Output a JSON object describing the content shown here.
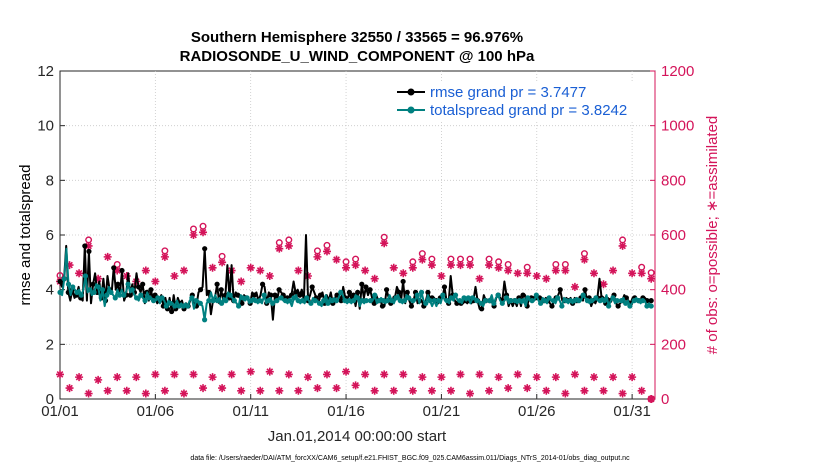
{
  "chart_data": {
    "type": "line",
    "title_line1": "Southern Hemisphere 32550 / 33565 = 96.976%",
    "title_line2": "RADIOSONDE_U_WIND_COMPONENT @ 100 hPa",
    "xlabel": "Jan.01,2014 00:00:00 start",
    "ylabel_left": "rmse and totalspread",
    "ylabel_right": "# of obs: o=possible; ∗=assimilated",
    "footnote": "data file: /Users/raeder/DAI/ATM_forcXX/CAM6_setup/f.e21.FHIST_BGC.f09_025.CAM6assim.011/Diags_NTrS_2014-01/obs_diag_output.nc",
    "xlim": [
      1,
      32.2
    ],
    "x_ticks": [
      1,
      6,
      11,
      16,
      21,
      26,
      31
    ],
    "x_tick_labels": [
      "01/01",
      "01/06",
      "01/11",
      "01/16",
      "01/21",
      "01/26",
      "01/31"
    ],
    "ylim_left": [
      0,
      12
    ],
    "y_ticks_left": [
      "0",
      "2",
      "4",
      "6",
      "8",
      "10",
      "12"
    ],
    "ylim_right": [
      0,
      1200
    ],
    "y_ticks_right": [
      "0",
      "200",
      "400",
      "600",
      "800",
      "1000",
      "1200"
    ],
    "colors": {
      "rmse": "#000000",
      "totalspread": "#008080",
      "obs": "#d4145a",
      "legend_text": "#1a5fd4"
    },
    "series": [
      {
        "name": "rmse",
        "legend": "rmse grand pr = 3.7477",
        "values": [
          4.3,
          4.1,
          4.4,
          5.6,
          3.9,
          3.6,
          4.0,
          3.7,
          3.8,
          4.1,
          3.7,
          3.6,
          5.6,
          3.6,
          5.4,
          3.5,
          4.2,
          4.6,
          3.9,
          4.3,
          3.7,
          4.4,
          3.6,
          4.5,
          4.0,
          3.9,
          4.8,
          4.0,
          4.2,
          3.8,
          4.7,
          3.6,
          3.8,
          4.6,
          3.8,
          4.2,
          3.9,
          4.6,
          4.1,
          3.9,
          4.2,
          3.5,
          3.9,
          3.6,
          4.0,
          3.6,
          3.8,
          3.5,
          3.6,
          3.8,
          3.4,
          3.7,
          3.3,
          3.7,
          3.2,
          3.8,
          3.3,
          3.7,
          3.5,
          3.6,
          3.3,
          3.5,
          3.4,
          3.6,
          3.8,
          3.5,
          3.4,
          3.9,
          4.0,
          4.1,
          5.5,
          3.8,
          3.9,
          3.1,
          3.6,
          3.7,
          4.2,
          3.5,
          4.0,
          3.6,
          3.8,
          4.9,
          3.7,
          4.9,
          3.6,
          3.9,
          3.8,
          3.7,
          3.5,
          3.8,
          3.7,
          3.7,
          3.5,
          3.9,
          3.8,
          3.9,
          3.6,
          3.8,
          4.2,
          4.1,
          3.5,
          3.9,
          3.8,
          2.9,
          3.8,
          3.6,
          4.0,
          3.9,
          3.8,
          3.6,
          3.7,
          3.7,
          3.8,
          4.3,
          3.9,
          4.0,
          3.8,
          4.0,
          3.6,
          6.0,
          3.6,
          3.8,
          4.1,
          3.9,
          3.7,
          3.5,
          3.8,
          3.9,
          3.5,
          3.8,
          3.6,
          3.9,
          3.5,
          3.7,
          3.8,
          3.8,
          3.6,
          4.1,
          3.7,
          3.6,
          3.9,
          3.6,
          3.8,
          3.4,
          3.9,
          3.3,
          4.2,
          3.7,
          4.1,
          3.8,
          4.0,
          3.7,
          3.5,
          3.8,
          3.6,
          3.6,
          3.4,
          3.4,
          4.0,
          3.7,
          3.5,
          3.5,
          3.7,
          4.1,
          3.9,
          3.6,
          4.3,
          3.5,
          3.9,
          3.6,
          3.4,
          3.6,
          3.9,
          3.5,
          3.6,
          3.6,
          3.4,
          3.6,
          3.9,
          3.7,
          3.7,
          3.7,
          3.6,
          3.5,
          3.7,
          3.7,
          4.1,
          3.6,
          3.5,
          4.5,
          3.8,
          3.6,
          3.5,
          3.6,
          3.5,
          3.5,
          3.6,
          3.5,
          3.6,
          3.5,
          3.6,
          4.1,
          3.6,
          3.3,
          3.3,
          3.8,
          3.6,
          3.6,
          3.6,
          3.6,
          3.4,
          3.7,
          3.8,
          3.7,
          3.6,
          4.3,
          3.8,
          3.4,
          3.6,
          3.4,
          3.6,
          3.4,
          3.7,
          3.4,
          3.8,
          3.8,
          3.4,
          3.7,
          3.7,
          3.6,
          3.7,
          3.7,
          3.7,
          3.6,
          3.6,
          3.7,
          3.6,
          3.5,
          3.4,
          3.6,
          3.7,
          3.8,
          4.0,
          3.6,
          3.6,
          3.7,
          3.6,
          3.7,
          3.5,
          3.7,
          3.6,
          3.6,
          3.7,
          3.6,
          4.0,
          3.6,
          3.7,
          3.4,
          3.6,
          3.5,
          3.7,
          4.4,
          3.7,
          3.7,
          3.5,
          3.7,
          3.6,
          3.7,
          3.8,
          3.5,
          3.4,
          3.5,
          3.6,
          3.8,
          3.7,
          3.6,
          3.5,
          3.7,
          3.7,
          3.6,
          3.6,
          3.6,
          3.7,
          3.7,
          3.6,
          3.6,
          3.6
        ]
      },
      {
        "name": "totalspread",
        "legend": "totalspread grand pr = 3.8242",
        "values": [
          3.9,
          3.8,
          4.4,
          5.5,
          4.2,
          3.8,
          4.1,
          4.0,
          3.9,
          4.0,
          3.8,
          4.0,
          4.5,
          3.9,
          4.0,
          3.8,
          3.9,
          4.2,
          4.1,
          3.6,
          4.0,
          3.4,
          3.8,
          4.1,
          3.9,
          3.8,
          3.7,
          4.0,
          3.8,
          4.0,
          3.8,
          3.9,
          4.2,
          3.9,
          4.0,
          3.8,
          3.7,
          3.6,
          3.8,
          3.7,
          3.6,
          3.9,
          3.7,
          3.7,
          3.6,
          3.6,
          3.7,
          3.5,
          3.7,
          3.6,
          3.4,
          3.6,
          3.5,
          3.5,
          3.4,
          3.6,
          3.4,
          3.5,
          3.4,
          3.5,
          3.4,
          3.6,
          3.7,
          3.3,
          3.6,
          3.6,
          3.5,
          3.4,
          2.9,
          3.5,
          3.6,
          3.9,
          3.6,
          3.8,
          3.6,
          3.7,
          3.5,
          3.7,
          3.6,
          3.9,
          3.8,
          3.7,
          3.6,
          3.5,
          3.4,
          3.8,
          3.7,
          3.6,
          3.7,
          3.5,
          3.6,
          3.7,
          3.6,
          3.5,
          3.6,
          3.5,
          3.8,
          3.5,
          3.6,
          3.7,
          3.5,
          3.6,
          3.6,
          3.7,
          3.7,
          3.6,
          3.6,
          3.5,
          3.6,
          3.4,
          3.7,
          3.8,
          3.6,
          3.5,
          3.6,
          3.5,
          3.7,
          3.6,
          3.5,
          3.7,
          3.6,
          3.6,
          3.5,
          3.4,
          3.6,
          3.8,
          3.5,
          3.7,
          3.6,
          3.7,
          3.6,
          3.7,
          3.9,
          3.8,
          3.6,
          3.5,
          3.6,
          3.5,
          3.6,
          3.8,
          3.7,
          3.4,
          3.6,
          3.5,
          3.6,
          3.6,
          3.6,
          3.6,
          3.8,
          3.5,
          3.6,
          3.7,
          3.6,
          3.5,
          3.6,
          3.8,
          3.6,
          3.5,
          3.7,
          3.8,
          3.6,
          3.5,
          3.6,
          3.8,
          3.7,
          3.6,
          3.6,
          3.6,
          3.8,
          3.5,
          3.9,
          3.6,
          3.5,
          3.8,
          3.6,
          3.4,
          3.6,
          3.4,
          3.6,
          3.5,
          3.8,
          3.6,
          3.6,
          3.5,
          3.7,
          3.6,
          3.8,
          3.6,
          3.6,
          3.5,
          3.7,
          3.6,
          3.7,
          3.5,
          3.7,
          3.7,
          3.6,
          3.6,
          3.5,
          3.4,
          3.6,
          3.6,
          3.6,
          3.8,
          3.5,
          3.7,
          3.8,
          3.6,
          3.5,
          3.6,
          3.7,
          3.5,
          3.6,
          3.6,
          3.6,
          3.5,
          3.6,
          3.5,
          3.6,
          3.4,
          3.7,
          3.6,
          3.6,
          3.6,
          3.8,
          3.6,
          3.5,
          3.7,
          3.6,
          3.5,
          3.7,
          3.6,
          3.6,
          3.5,
          3.7,
          3.6,
          3.4,
          3.7,
          3.6,
          3.5,
          3.6,
          3.5,
          3.6,
          3.7,
          3.6,
          3.6,
          3.8,
          3.7,
          3.6,
          3.5,
          3.6,
          3.6,
          3.7,
          3.6,
          3.6,
          3.7,
          3.6,
          3.8,
          3.4,
          3.6,
          3.7,
          3.5,
          3.6,
          3.6,
          3.6,
          3.7,
          3.5,
          3.6,
          3.4,
          3.5,
          3.6,
          3.7,
          3.6,
          3.5,
          3.6,
          3.6,
          3.4,
          3.5,
          3.4
        ]
      }
    ],
    "obs_possible": {
      "x": [
        1.0,
        1.5,
        2.0,
        2.5,
        3.0,
        3.5,
        4.0,
        4.5,
        5.0,
        5.5,
        6.0,
        6.5,
        7.0,
        7.5,
        8.0,
        8.5,
        9.0,
        9.5,
        10.0,
        10.5,
        11.0,
        11.5,
        12.0,
        12.5,
        13.0,
        13.5,
        14.0,
        14.5,
        15.0,
        15.5,
        16.0,
        16.5,
        17.0,
        17.5,
        18.0,
        18.5,
        19.0,
        19.5,
        20.0,
        20.5,
        21.0,
        21.5,
        22.0,
        22.5,
        23.0,
        23.5,
        24.0,
        24.5,
        25.0,
        25.5,
        26.0,
        26.5,
        27.0,
        27.5,
        28.0,
        28.5,
        29.0,
        29.5,
        30.0,
        30.5,
        31.0,
        31.5,
        32.0
      ],
      "values": [
        430,
        490,
        460,
        560,
        440,
        520,
        470,
        450,
        430,
        470,
        430,
        520,
        450,
        470,
        600,
        610,
        480,
        500,
        470,
        430,
        480,
        470,
        450,
        550,
        560,
        470,
        450,
        520,
        540,
        510,
        480,
        490,
        470,
        440,
        570,
        480,
        460,
        480,
        510,
        490,
        450,
        490,
        490,
        490,
        440,
        490,
        480,
        470,
        460,
        460,
        450,
        440,
        470,
        470,
        410,
        510,
        460,
        420,
        470,
        560,
        460,
        460,
        440
      ],
      "possible_only": [
        1,
        0,
        0,
        1,
        0,
        0,
        1,
        0,
        0,
        0,
        0,
        1,
        0,
        0,
        1,
        1,
        0,
        1,
        0,
        0,
        0,
        0,
        0,
        1,
        1,
        0,
        0,
        1,
        1,
        0,
        1,
        1,
        0,
        0,
        1,
        0,
        0,
        1,
        1,
        1,
        0,
        1,
        1,
        1,
        0,
        1,
        1,
        1,
        0,
        1,
        0,
        0,
        1,
        1,
        0,
        1,
        0,
        0,
        0,
        1,
        0,
        1,
        1
      ]
    },
    "obs_assimilated": {
      "x": [
        1.0,
        1.5,
        2.0,
        2.5,
        3.0,
        3.5,
        4.0,
        4.5,
        5.0,
        5.5,
        6.0,
        6.5,
        7.0,
        7.5,
        8.0,
        8.5,
        9.0,
        9.5,
        10.0,
        10.5,
        11.0,
        11.5,
        12.0,
        12.5,
        13.0,
        13.5,
        14.0,
        14.5,
        15.0,
        15.5,
        16.0,
        16.5,
        17.0,
        17.5,
        18.0,
        18.5,
        19.0,
        19.5,
        20.0,
        20.5,
        21.0,
        21.5,
        22.0,
        22.5,
        23.0,
        23.5,
        24.0,
        24.5,
        25.0,
        25.5,
        26.0,
        26.5,
        27.0,
        27.5,
        28.0,
        28.5,
        29.0,
        29.5,
        30.0,
        30.5,
        31.0,
        31.5,
        32.0
      ],
      "values": [
        90,
        40,
        80,
        20,
        70,
        30,
        80,
        30,
        80,
        20,
        90,
        30,
        90,
        20,
        90,
        40,
        80,
        40,
        90,
        30,
        100,
        30,
        100,
        30,
        90,
        30,
        80,
        40,
        90,
        40,
        100,
        50,
        90,
        30,
        90,
        30,
        90,
        30,
        80,
        30,
        80,
        30,
        90,
        20,
        90,
        30,
        80,
        40,
        90,
        40,
        80,
        30,
        80,
        20,
        90,
        30,
        80,
        30,
        80,
        20,
        80,
        30,
        0
      ]
    }
  }
}
